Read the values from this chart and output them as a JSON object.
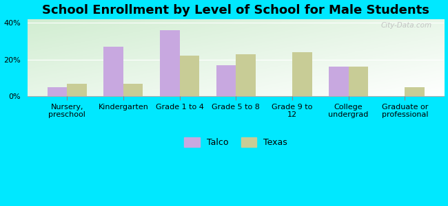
{
  "title": "School Enrollment by Level of School for Male Students",
  "categories": [
    "Nursery,\npreschool",
    "Kindergarten",
    "Grade 1 to 4",
    "Grade 5 to 8",
    "Grade 9 to\n12",
    "College\nundergrad",
    "Graduate or\nprofessional"
  ],
  "talco_values": [
    5,
    27,
    36,
    17,
    0,
    16,
    0
  ],
  "texas_values": [
    7,
    7,
    22,
    23,
    24,
    16,
    5
  ],
  "talco_color": "#c8a8e0",
  "texas_color": "#c8cc96",
  "background_outer": "#00e8ff",
  "ylim": [
    0,
    42
  ],
  "yticks": [
    0,
    20,
    40
  ],
  "ytick_labels": [
    "0%",
    "20%",
    "40%"
  ],
  "bar_width": 0.35,
  "title_fontsize": 13,
  "tick_fontsize": 8,
  "legend_labels": [
    "Talco",
    "Texas"
  ],
  "watermark": "City-Data.com"
}
